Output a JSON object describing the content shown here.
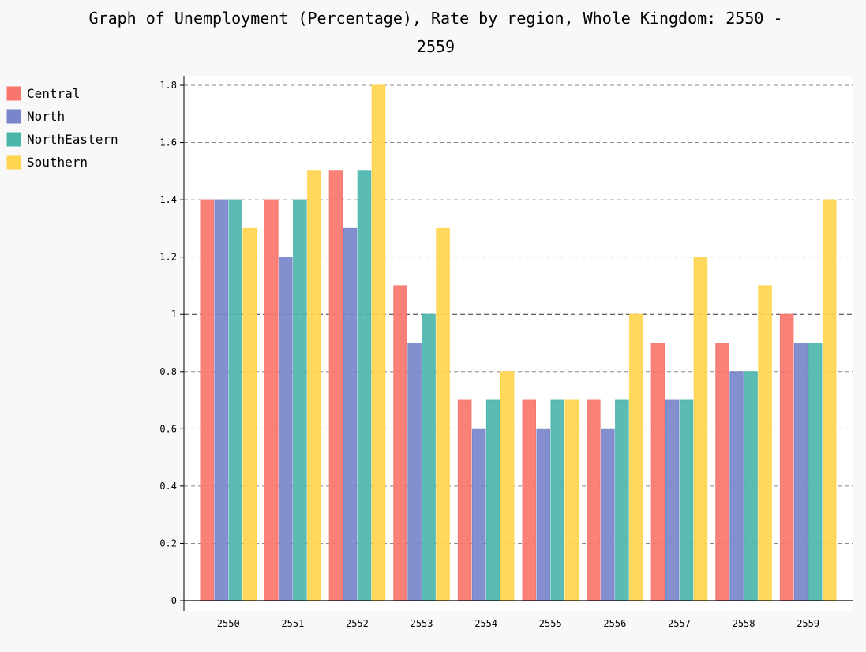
{
  "chart_data": {
    "type": "bar",
    "title_line1": "Graph of Unemployment (Percentage), Rate by region, Whole Kingdom: 2550 -",
    "title_line2": "2559",
    "categories": [
      "2550",
      "2551",
      "2552",
      "2553",
      "2554",
      "2555",
      "2556",
      "2557",
      "2558",
      "2559"
    ],
    "series": [
      {
        "name": "Central",
        "color": "#f8766d",
        "values": [
          1.4,
          1.4,
          1.5,
          1.1,
          0.7,
          0.7,
          0.7,
          0.9,
          0.9,
          1.0
        ]
      },
      {
        "name": "North",
        "color": "#7986cb",
        "values": [
          1.4,
          1.2,
          1.3,
          0.9,
          0.6,
          0.6,
          0.6,
          0.7,
          0.8,
          0.9
        ]
      },
      {
        "name": "NorthEastern",
        "color": "#4db6ac",
        "values": [
          1.4,
          1.4,
          1.5,
          1.0,
          0.7,
          0.7,
          0.7,
          0.7,
          0.8,
          0.9
        ]
      },
      {
        "name": "Southern",
        "color": "#ffd54f",
        "values": [
          1.3,
          1.5,
          1.8,
          1.3,
          0.8,
          0.7,
          1.0,
          1.2,
          1.1,
          1.4
        ]
      }
    ],
    "y_ticks": [
      "0",
      "0.2",
      "0.4",
      "0.6",
      "0.8",
      "1",
      "1.2",
      "1.4",
      "1.6",
      "1.8"
    ],
    "ylim": [
      0,
      1.8
    ],
    "grid": "horizontal dashed",
    "legend_position": "top-left"
  }
}
